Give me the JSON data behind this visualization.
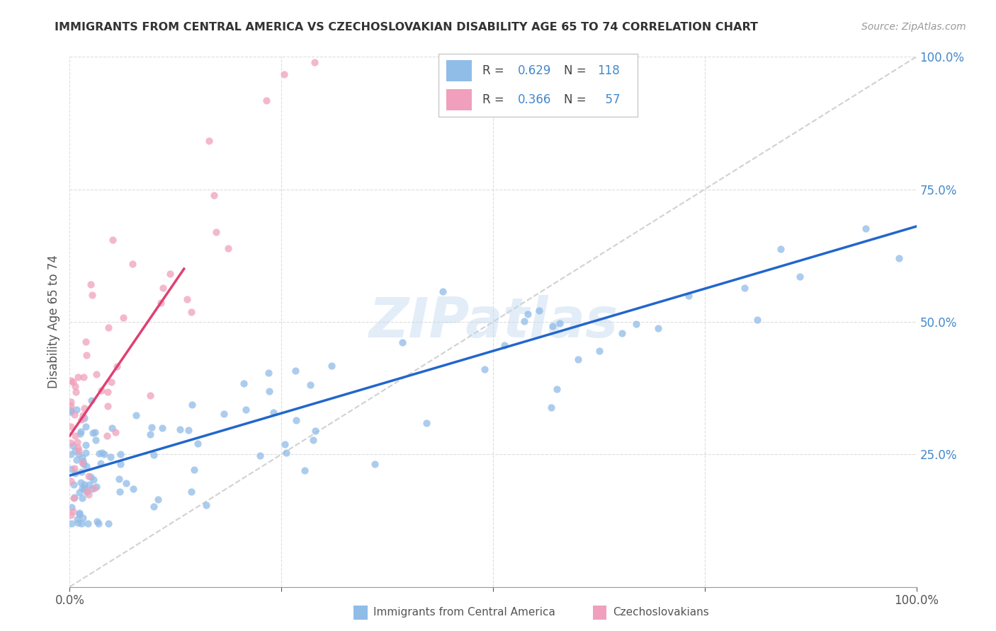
{
  "title": "IMMIGRANTS FROM CENTRAL AMERICA VS CZECHOSLOVAKIAN DISABILITY AGE 65 TO 74 CORRELATION CHART",
  "source": "Source: ZipAtlas.com",
  "ylabel": "Disability Age 65 to 74",
  "scatter_color_blue": "#90bce8",
  "scatter_color_pink": "#f0a0bc",
  "line_color_blue": "#2266cc",
  "line_color_pink": "#e04070",
  "diagonal_color": "#cccccc",
  "background_color": "#ffffff",
  "grid_color": "#dddddd",
  "title_color": "#333333",
  "source_color": "#999999",
  "legend_value_color": "#4488cc",
  "xlim": [
    0.0,
    1.0
  ],
  "ylim": [
    0.0,
    1.0
  ],
  "blue_line_x0": 0.0,
  "blue_line_y0": 0.21,
  "blue_line_x1": 1.0,
  "blue_line_y1": 0.68,
  "pink_line_x0": 0.0,
  "pink_line_y0": 0.285,
  "pink_line_x1": 0.135,
  "pink_line_y1": 0.6
}
